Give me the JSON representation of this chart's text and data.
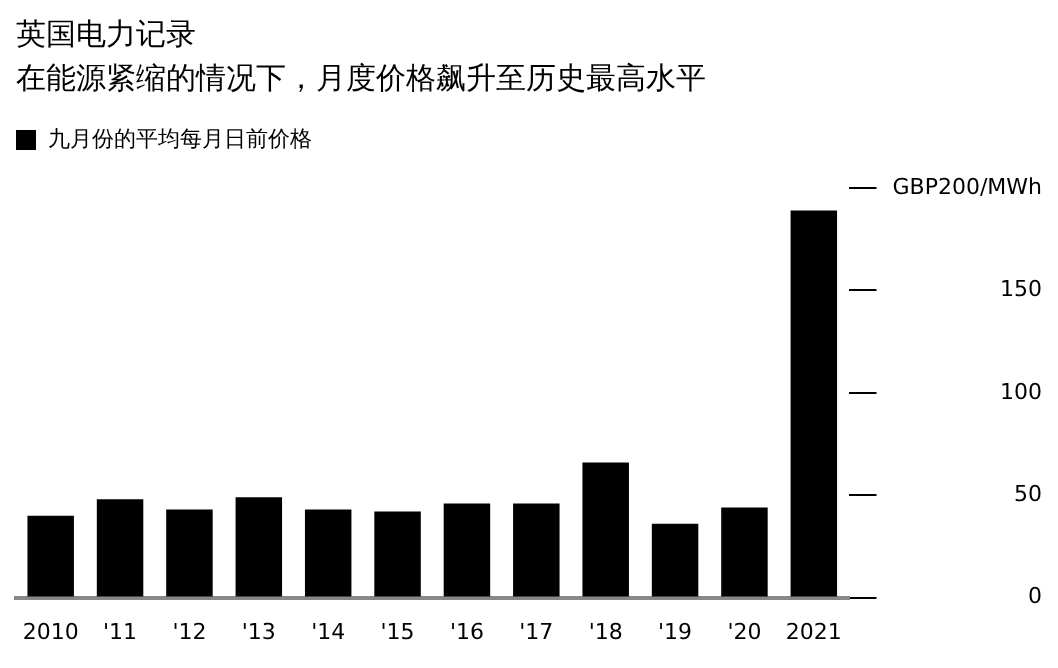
{
  "chart_data": {
    "type": "bar",
    "title": "英国电力记录",
    "subtitle": "在能源紧缩的情况下，月度价格飙升至历史最高水平",
    "categories": [
      "2010",
      "'11",
      "'12",
      "'13",
      "'14",
      "'15",
      "'16",
      "'17",
      "'18",
      "'19",
      "'20",
      "2021"
    ],
    "series": [
      {
        "name": "九月份的平均每月日前价格",
        "color": "#000000",
        "values": [
          40,
          48,
          43,
          49,
          43,
          42,
          46,
          46,
          66,
          36,
          44,
          189
        ]
      }
    ],
    "ylim": [
      0,
      200
    ],
    "yticks": [
      0,
      50,
      100,
      150,
      {
        "value": 200,
        "label": "GBP200/MWh"
      }
    ],
    "grid": false,
    "legend": "top left"
  }
}
